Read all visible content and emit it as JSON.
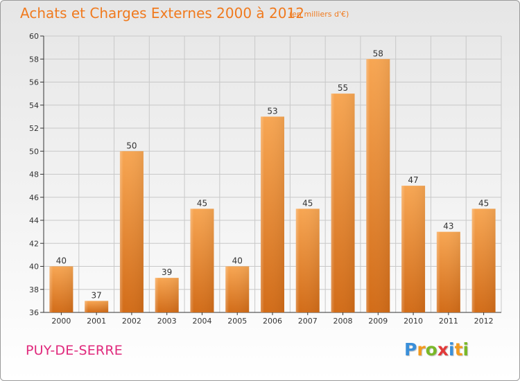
{
  "chart_data": {
    "type": "bar",
    "title": "Achats et Charges Externes 2000 à 2012",
    "subtitle": "(en milliers d'€)",
    "categories": [
      "2000",
      "2001",
      "2002",
      "2003",
      "2004",
      "2005",
      "2006",
      "2007",
      "2008",
      "2009",
      "2010",
      "2011",
      "2012"
    ],
    "values": [
      40,
      37,
      50,
      39,
      45,
      40,
      53,
      45,
      55,
      58,
      47,
      43,
      45
    ],
    "xlabel": "",
    "ylabel": "",
    "ylim": [
      36,
      60
    ],
    "yticks": [
      36,
      38,
      40,
      42,
      44,
      46,
      48,
      50,
      52,
      54,
      56,
      58,
      60
    ],
    "grid": true,
    "legend": "none",
    "bar_color": "#f0923a",
    "bar_color_dark": "#d06a16"
  },
  "footer": {
    "commune": "PUY-DE-SERRE",
    "logo_letters": [
      {
        "char": "P",
        "color": "#3a8fd9"
      },
      {
        "char": "r",
        "color": "#f39a1e"
      },
      {
        "char": "o",
        "color": "#7ab828"
      },
      {
        "char": "x",
        "color": "#e23a3a"
      },
      {
        "char": "i",
        "color": "#3a8fd9"
      },
      {
        "char": "t",
        "color": "#f39a1e"
      },
      {
        "char": "i",
        "color": "#7ab828"
      }
    ]
  },
  "colors": {
    "title": "#f07a1e",
    "commune": "#e0297c",
    "grid": "#c8c8c8",
    "axis": "#333333"
  }
}
